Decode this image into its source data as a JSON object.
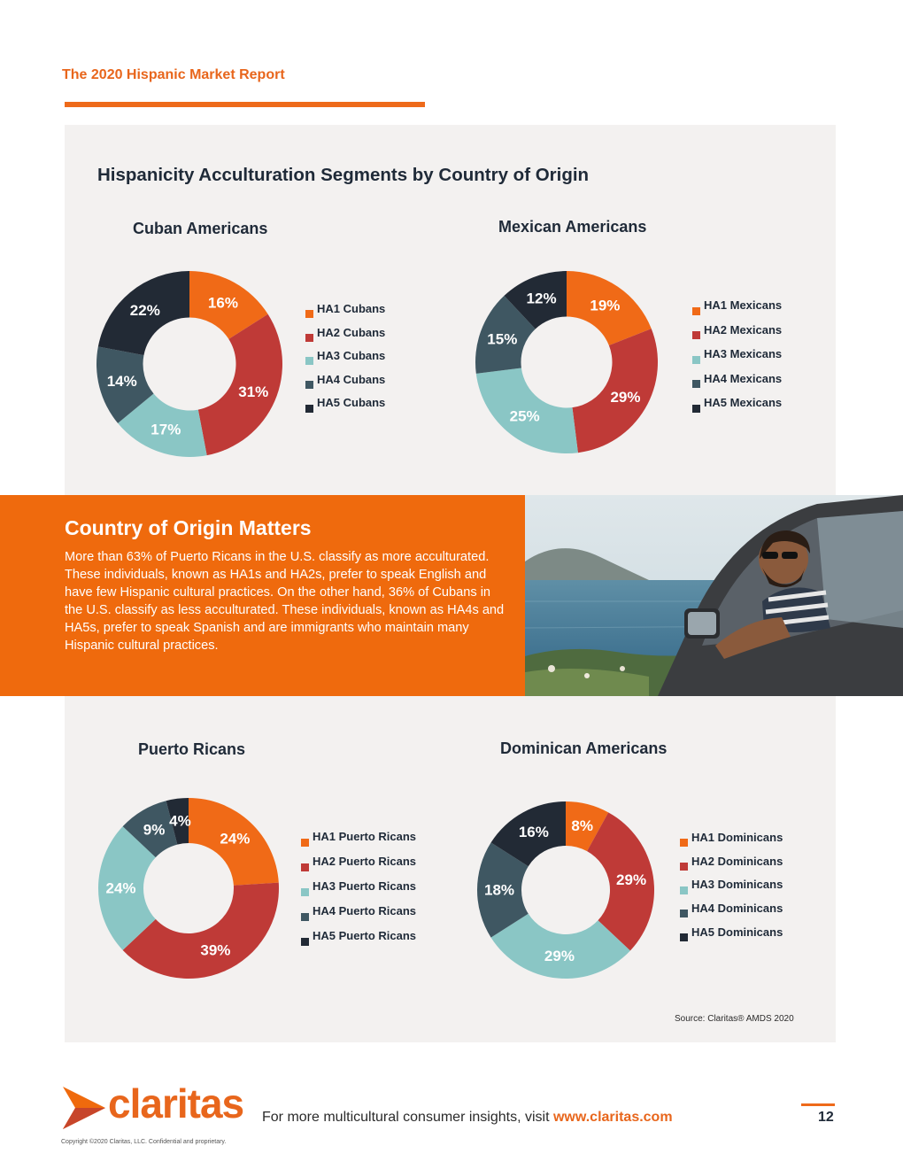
{
  "header": {
    "report_title": "The 2020 Hispanic Market Report"
  },
  "section_title": "Hispanicity Acculturation Segments by Country of Origin",
  "colors": {
    "orange": "#f06a17",
    "red": "#bf3a37",
    "teal": "#8ac6c5",
    "slate": "#3f5762",
    "navy": "#222a35"
  },
  "charts": [
    {
      "title": "Cuban Americans",
      "slices": [
        {
          "label": "HA1 Cubans",
          "value": 16,
          "text": "16%"
        },
        {
          "label": "HA2 Cubans",
          "value": 31,
          "text": "31%"
        },
        {
          "label": "HA3 Cubans",
          "value": 17,
          "text": "17%"
        },
        {
          "label": "HA4 Cubans",
          "value": 14,
          "text": "14%"
        },
        {
          "label": "HA5 Cubans",
          "value": 22,
          "text": "22%"
        }
      ]
    },
    {
      "title": "Mexican Americans",
      "slices": [
        {
          "label": "HA1 Mexicans",
          "value": 19,
          "text": "19%"
        },
        {
          "label": "HA2 Mexicans",
          "value": 29,
          "text": "29%"
        },
        {
          "label": "HA3 Mexicans",
          "value": 25,
          "text": "25%"
        },
        {
          "label": "HA4 Mexicans",
          "value": 15,
          "text": "15%"
        },
        {
          "label": "HA5 Mexicans",
          "value": 12,
          "text": "12%"
        }
      ]
    },
    {
      "title": "Puerto Ricans",
      "slices": [
        {
          "label": "HA1 Puerto Ricans",
          "value": 24,
          "text": "24%"
        },
        {
          "label": "HA2 Puerto Ricans",
          "value": 39,
          "text": "39%"
        },
        {
          "label": "HA3 Puerto Ricans",
          "value": 24,
          "text": "24%"
        },
        {
          "label": "HA4 Puerto Ricans",
          "value": 9,
          "text": "9%"
        },
        {
          "label": "HA5 Puerto Ricans",
          "value": 4,
          "text": "4%"
        }
      ]
    },
    {
      "title": "Dominican Americans",
      "slices": [
        {
          "label": "HA1 Dominicans",
          "value": 8,
          "text": "8%"
        },
        {
          "label": "HA2 Dominicans",
          "value": 29,
          "text": "29%"
        },
        {
          "label": "HA3 Dominicans",
          "value": 29,
          "text": "29%"
        },
        {
          "label": "HA4 Dominicans",
          "value": 18,
          "text": "18%"
        },
        {
          "label": "HA5 Dominicans",
          "value": 16,
          "text": "16%"
        }
      ]
    }
  ],
  "chart_data": [
    {
      "type": "pie",
      "title": "Cuban Americans",
      "categories": [
        "HA1 Cubans",
        "HA2 Cubans",
        "HA3 Cubans",
        "HA4 Cubans",
        "HA5 Cubans"
      ],
      "values": [
        16,
        31,
        17,
        14,
        22
      ],
      "legend": "right"
    },
    {
      "type": "pie",
      "title": "Mexican Americans",
      "categories": [
        "HA1 Mexicans",
        "HA2 Mexicans",
        "HA3 Mexicans",
        "HA4 Mexicans",
        "HA5 Mexicans"
      ],
      "values": [
        19,
        29,
        25,
        15,
        12
      ],
      "legend": "right"
    },
    {
      "type": "pie",
      "title": "Puerto Ricans",
      "categories": [
        "HA1 Puerto Ricans",
        "HA2 Puerto Ricans",
        "HA3 Puerto Ricans",
        "HA4 Puerto Ricans",
        "HA5 Puerto Ricans"
      ],
      "values": [
        24,
        39,
        24,
        9,
        4
      ],
      "legend": "right"
    },
    {
      "type": "pie",
      "title": "Dominican Americans",
      "categories": [
        "HA1 Dominicans",
        "HA2 Dominicans",
        "HA3 Dominicans",
        "HA4 Dominicans",
        "HA5 Dominicans"
      ],
      "values": [
        8,
        29,
        29,
        18,
        16
      ],
      "legend": "right"
    }
  ],
  "callout": {
    "title": "Country of Origin Matters",
    "body": "More than 63% of Puerto Ricans in the U.S. classify as more acculturated. These individuals, known as HA1s and HA2s, prefer to speak English and have few Hispanic cultural practices. On the other hand, 36% of Cubans in the U.S. classify as less acculturated. These individuals, known as HA4s and HA5s, prefer to speak Spanish and are immigrants who maintain many Hispanic cultural practices."
  },
  "source": "Source: Claritas® AMDS 2020",
  "footer": {
    "logo_text": "claritas",
    "copyright": "Copyright ©2020 Claritas, LLC. Confidential and proprietary.",
    "insights_text": "For more multicultural consumer insights, visit ",
    "link_text": "www.claritas.com",
    "page_number": "12"
  }
}
